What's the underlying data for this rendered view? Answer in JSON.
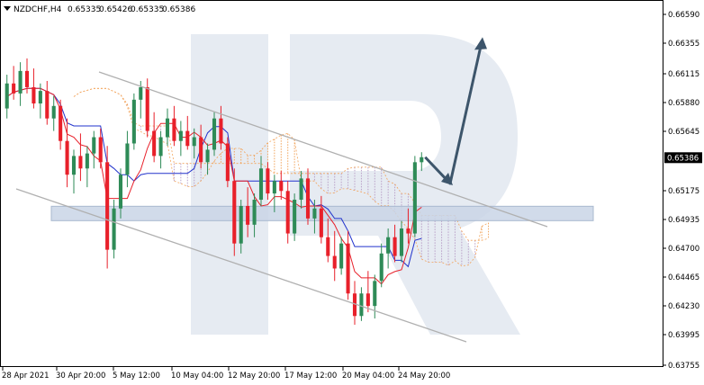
{
  "header": {
    "symbol_timeframe": "NZDCHF,H4",
    "open": "0.65335",
    "high": "0.65426",
    "low": "0.65335",
    "close": "0.65386"
  },
  "colors": {
    "bull_candle": "#2e8b57",
    "bear_candle": "#e8202a",
    "tenkan": "#e8202a",
    "kijun": "#2233cc",
    "cloud": "#f2a35a",
    "cloud_alt": "#b9a0c8",
    "channel": "#b0b0b0",
    "support_zone": "#c9d5e6",
    "arrow": "#3d556b",
    "watermark": "#e6ebf2"
  },
  "chart_data": {
    "type": "candlestick",
    "symbol": "NZDCHF",
    "timeframe": "H4",
    "current_price": "0.65386",
    "ylim": [
      0.63755,
      0.6659
    ],
    "y_ticks": [
      "0.66590",
      "0.66355",
      "0.66115",
      "0.65880",
      "0.65645",
      "0.65175",
      "0.64935",
      "0.64700",
      "0.64465",
      "0.64230",
      "0.63995",
      "0.63755"
    ],
    "x_ticks": [
      "28 Apr 2021",
      "30 Apr 20:00",
      "5 May 12:00",
      "10 May 04:00",
      "12 May 20:00",
      "17 May 12:00",
      "20 May 04:00",
      "24 May 20:00"
    ],
    "candles": [
      [
        0.6578,
        0.6605,
        0.657,
        0.6598
      ],
      [
        0.6598,
        0.6612,
        0.6585,
        0.659
      ],
      [
        0.659,
        0.6615,
        0.658,
        0.6608
      ],
      [
        0.6608,
        0.6618,
        0.659,
        0.6595
      ],
      [
        0.6595,
        0.661,
        0.6578,
        0.6582
      ],
      [
        0.6582,
        0.6598,
        0.657,
        0.6592
      ],
      [
        0.6592,
        0.66,
        0.6565,
        0.657
      ],
      [
        0.657,
        0.6588,
        0.656,
        0.658
      ],
      [
        0.658,
        0.6585,
        0.6545,
        0.6552
      ],
      [
        0.6552,
        0.657,
        0.6515,
        0.6525
      ],
      [
        0.6525,
        0.6545,
        0.651,
        0.654
      ],
      [
        0.654,
        0.6558,
        0.652,
        0.653
      ],
      [
        0.653,
        0.6548,
        0.6515,
        0.6542
      ],
      [
        0.6542,
        0.656,
        0.653,
        0.6555
      ],
      [
        0.6555,
        0.6562,
        0.653,
        0.6535
      ],
      [
        0.6535,
        0.6548,
        0.645,
        0.6465
      ],
      [
        0.6465,
        0.6505,
        0.6458,
        0.6498
      ],
      [
        0.6498,
        0.653,
        0.649,
        0.6525
      ],
      [
        0.6525,
        0.656,
        0.6515,
        0.655
      ],
      [
        0.655,
        0.659,
        0.6545,
        0.6585
      ],
      [
        0.6585,
        0.66,
        0.657,
        0.6595
      ],
      [
        0.6595,
        0.6602,
        0.6555,
        0.656
      ],
      [
        0.656,
        0.6575,
        0.6535,
        0.654
      ],
      [
        0.654,
        0.656,
        0.653,
        0.6555
      ],
      [
        0.6555,
        0.6578,
        0.6548,
        0.657
      ],
      [
        0.657,
        0.658,
        0.6548,
        0.6552
      ],
      [
        0.6552,
        0.6568,
        0.654,
        0.656
      ],
      [
        0.656,
        0.6572,
        0.6545,
        0.6548
      ],
      [
        0.6548,
        0.6562,
        0.6538,
        0.6555
      ],
      [
        0.6555,
        0.6565,
        0.653,
        0.6535
      ],
      [
        0.6535,
        0.655,
        0.6525,
        0.6545
      ],
      [
        0.6545,
        0.6575,
        0.654,
        0.657
      ],
      [
        0.657,
        0.658,
        0.6545,
        0.655
      ],
      [
        0.655,
        0.6555,
        0.6515,
        0.652
      ],
      [
        0.652,
        0.653,
        0.646,
        0.647
      ],
      [
        0.647,
        0.6505,
        0.6462,
        0.65
      ],
      [
        0.65,
        0.6515,
        0.6475,
        0.6485
      ],
      [
        0.6485,
        0.651,
        0.6475,
        0.6505
      ],
      [
        0.6505,
        0.654,
        0.65,
        0.653
      ],
      [
        0.653,
        0.6535,
        0.6505,
        0.651
      ],
      [
        0.651,
        0.6525,
        0.6495,
        0.652
      ],
      [
        0.652,
        0.6528,
        0.6505,
        0.6512
      ],
      [
        0.6512,
        0.652,
        0.647,
        0.6478
      ],
      [
        0.6478,
        0.651,
        0.6472,
        0.6505
      ],
      [
        0.6505,
        0.6528,
        0.6498,
        0.6522
      ],
      [
        0.6522,
        0.653,
        0.6485,
        0.649
      ],
      [
        0.649,
        0.6505,
        0.6478,
        0.6498
      ],
      [
        0.6498,
        0.6508,
        0.647,
        0.6475
      ],
      [
        0.6475,
        0.649,
        0.6455,
        0.646
      ],
      [
        0.646,
        0.648,
        0.644,
        0.645
      ],
      [
        0.645,
        0.6475,
        0.6445,
        0.647
      ],
      [
        0.647,
        0.648,
        0.6425,
        0.643
      ],
      [
        0.643,
        0.644,
        0.6405,
        0.6412
      ],
      [
        0.6412,
        0.6435,
        0.6408,
        0.643
      ],
      [
        0.643,
        0.6448,
        0.6415,
        0.642
      ],
      [
        0.642,
        0.6445,
        0.641,
        0.644
      ],
      [
        0.644,
        0.647,
        0.6435,
        0.6462
      ],
      [
        0.6462,
        0.6482,
        0.645,
        0.6475
      ],
      [
        0.6475,
        0.6485,
        0.6455,
        0.646
      ],
      [
        0.646,
        0.6488,
        0.6455,
        0.6482
      ],
      [
        0.6482,
        0.6498,
        0.647,
        0.6478
      ],
      [
        0.6478,
        0.654,
        0.6475,
        0.6535
      ],
      [
        0.6535,
        0.6543,
        0.6528,
        0.6539
      ]
    ],
    "annotations": [
      {
        "type": "descending-channel"
      },
      {
        "type": "support-zone",
        "price": 0.6494
      },
      {
        "type": "forecast-arrows",
        "path": [
          0.6539,
          0.6518,
          0.6635
        ]
      }
    ]
  }
}
